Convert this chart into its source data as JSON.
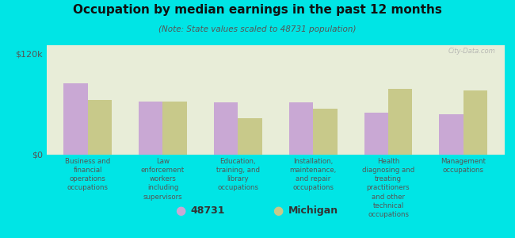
{
  "title": "Occupation by median earnings in the past 12 months",
  "subtitle": "(Note: State values scaled to 48731 population)",
  "background_color": "#00e5e5",
  "plot_bg_color": "#e8edd8",
  "categories": [
    "Business and\nfinancial\noperations\noccupations",
    "Law\nenforcement\nworkers\nincluding\nsupervisors",
    "Education,\ntraining, and\nlibrary\noccupations",
    "Installation,\nmaintenance,\nand repair\noccupations",
    "Health\ndiagnosing and\ntreating\npractitioners\nand other\ntechnical\noccupations",
    "Management\noccupations"
  ],
  "values_48731": [
    85000,
    63000,
    62000,
    62000,
    50000,
    48000
  ],
  "values_michigan": [
    65000,
    63000,
    43000,
    55000,
    78000,
    76000
  ],
  "bar_color_48731": "#c9a8d4",
  "bar_color_michigan": "#c8c98a",
  "ylim": [
    0,
    130000
  ],
  "yticks": [
    0,
    120000
  ],
  "ytick_labels": [
    "$0",
    "$120k"
  ],
  "legend_label_48731": "48731",
  "legend_label_michigan": "Michigan",
  "watermark": "City-Data.com"
}
